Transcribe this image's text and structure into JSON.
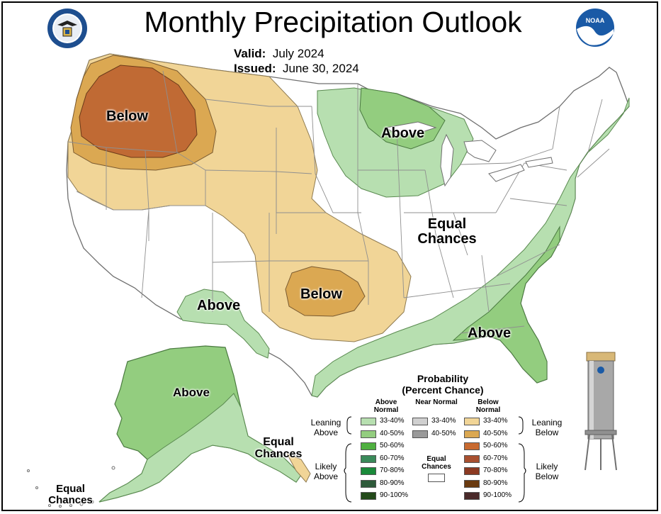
{
  "title": "Monthly Precipitation Outlook",
  "valid_label": "Valid:",
  "valid_value": "July 2024",
  "issued_label": "Issued:",
  "issued_value": "June 30, 2024",
  "logos": {
    "left": "dept-of-commerce-seal",
    "right": "noaa-logo",
    "noaa_text": "NOAA"
  },
  "map_labels": {
    "below_northwest": "Below",
    "above_great_lakes": "Above",
    "equal_chances_center_1": "Equal",
    "equal_chances_center_2": "Chances",
    "below_southern_plains": "Below",
    "above_southwest": "Above",
    "above_southeast": "Above",
    "above_alaska": "Above",
    "equal_chances_se_alaska_1": "Equal",
    "equal_chances_se_alaska_2": "Chances",
    "equal_chances_sw_alaska_1": "Equal",
    "equal_chances_sw_alaska_2": "Chances"
  },
  "legend": {
    "title_1": "Probability",
    "title_2": "(Percent Chance)",
    "col_above": "Above Normal",
    "col_near": "Near Normal",
    "col_below": "Below Normal",
    "leaning_above": "Leaning Above",
    "leaning_below": "Leaning Below",
    "likely_above": "Likely Above",
    "likely_below": "Likely Below",
    "equal_chances": "Equal Chances",
    "above": [
      {
        "label": "33-40%",
        "color": "#b7dfb0"
      },
      {
        "label": "40-50%",
        "color": "#93cd7f"
      },
      {
        "label": "50-60%",
        "color": "#4fb040"
      },
      {
        "label": "60-70%",
        "color": "#3a8a5a"
      },
      {
        "label": "70-80%",
        "color": "#1a8a3a"
      },
      {
        "label": "80-90%",
        "color": "#2e5a3a"
      },
      {
        "label": "90-100%",
        "color": "#234a1a"
      }
    ],
    "near": [
      {
        "label": "33-40%",
        "color": "#d0d0d0"
      },
      {
        "label": "40-50%",
        "color": "#9a9a9a"
      }
    ],
    "below": [
      {
        "label": "33-40%",
        "color": "#f1d597"
      },
      {
        "label": "40-50%",
        "color": "#dba852"
      },
      {
        "label": "50-60%",
        "color": "#c86a30"
      },
      {
        "label": "60-70%",
        "color": "#a85030"
      },
      {
        "label": "70-80%",
        "color": "#8c3a22"
      },
      {
        "label": "80-90%",
        "color": "#6a3a10"
      },
      {
        "label": "90-100%",
        "color": "#4a2a2a"
      }
    ]
  },
  "colors": {
    "leaning_above": "#b7dfb0",
    "above_40_50": "#93cd7f",
    "leaning_below": "#f1d597",
    "below_40_50": "#dba852",
    "below_50_60": "#c86a30",
    "state_border": "#9a9a9a"
  }
}
